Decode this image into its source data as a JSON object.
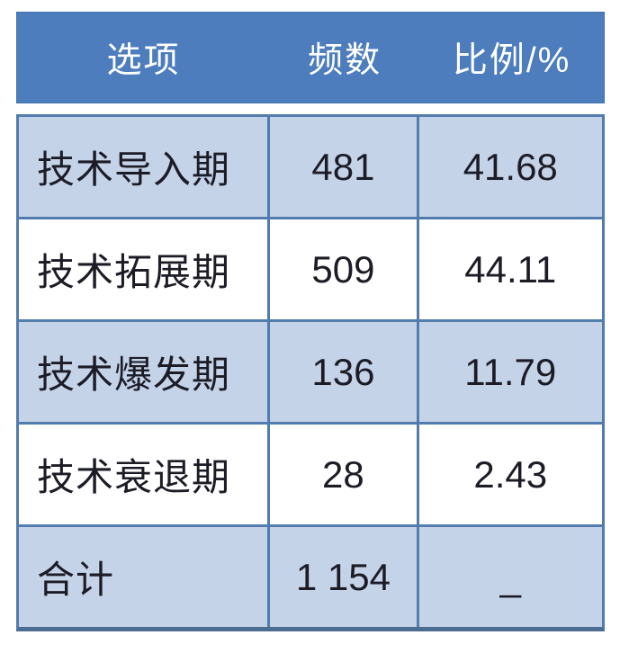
{
  "chart_data": {
    "type": "table",
    "title": "",
    "columns": [
      "选项",
      "频数",
      "比例/%"
    ],
    "rows": [
      {
        "option": "技术导入期",
        "frequency": "481",
        "percent": "41.68"
      },
      {
        "option": "技术拓展期",
        "frequency": "509",
        "percent": "44.11"
      },
      {
        "option": "技术爆发期",
        "frequency": "136",
        "percent": "11.79"
      },
      {
        "option": "技术衰退期",
        "frequency": "28",
        "percent": "2.43"
      },
      {
        "option": "合计",
        "frequency": "1 154",
        "percent": "_"
      }
    ],
    "frequencies_numeric": [
      481,
      509,
      136,
      28,
      1154
    ],
    "percentages_numeric": [
      41.68,
      44.11,
      11.79,
      2.43,
      null
    ],
    "total_row_label": "合计",
    "layout": {
      "banding": "alternating light-blue/white, total row light-blue",
      "col1_align": "left",
      "col2_align": "center",
      "col3_align": "center"
    }
  },
  "colors": {
    "header_bg": "#4d7dbd",
    "header_text": "#ffffff",
    "band_row_bg": "#c5d3e9",
    "plain_row_bg": "#ffffff",
    "grid_border": "#537cae",
    "bottom_border": "#4c6d92",
    "body_text": "#1c1c26"
  }
}
